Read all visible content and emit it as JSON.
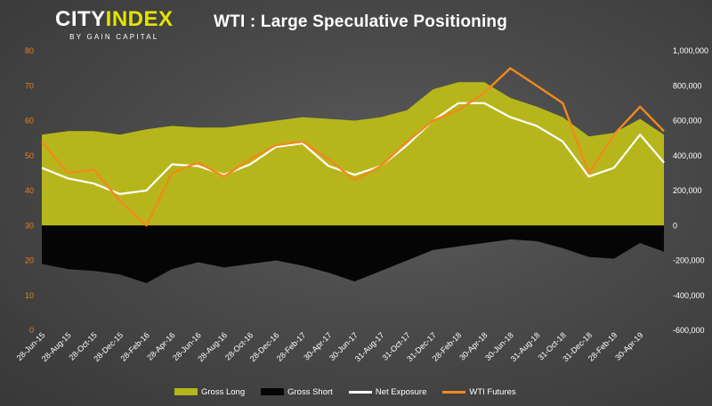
{
  "header": {
    "logo_main": "CITY",
    "logo_accent": "INDEX",
    "logo_sub": "BY GAIN CAPITAL",
    "title": "WTI : Large Speculative Positioning"
  },
  "colors": {
    "gross_long": "#b6b61c",
    "gross_short": "#050505",
    "net_exposure": "#ffffff",
    "wti_futures": "#f08a1e",
    "left_axis_text": "#e8811e",
    "right_axis_text": "#ffffff"
  },
  "chart_data": {
    "type": "area",
    "title": "WTI : Large Speculative Positioning",
    "left_axis": {
      "min": 0,
      "max": 80,
      "ticks": [
        0,
        10,
        20,
        30,
        40,
        50,
        60,
        70,
        80
      ],
      "series": "WTI Futures"
    },
    "right_axis": {
      "min": -600000,
      "max": 1000000,
      "ticks": [
        "-600,000",
        "-400,000",
        "-200,000",
        "0",
        "200,000",
        "400,000",
        "600,000",
        "800,000",
        "1,000,000"
      ]
    },
    "x_labels": [
      "28-Jun-15",
      "28-Aug-15",
      "28-Oct-15",
      "28-Dec-15",
      "28-Feb-16",
      "28-Apr-16",
      "28-Jun-16",
      "28-Aug-16",
      "28-Oct-16",
      "28-Dec-16",
      "28-Feb-17",
      "30-Apr-17",
      "30-Jun-17",
      "31-Aug-17",
      "31-Oct-17",
      "31-Dec-17",
      "28-Feb-18",
      "30-Apr-18",
      "30-Jun-18",
      "31-Aug-18",
      "31-Oct-18",
      "31-Dec-18",
      "28-Feb-19",
      "30-Apr-19"
    ],
    "x_range": [
      "28-Jun-15",
      "25-Jun-19"
    ],
    "sample_dates": [
      "28-Jun-15",
      "28-Aug-15",
      "28-Oct-15",
      "28-Dec-15",
      "28-Feb-16",
      "28-Apr-16",
      "28-Jun-16",
      "28-Aug-16",
      "28-Oct-16",
      "28-Dec-16",
      "28-Feb-17",
      "30-Apr-17",
      "30-Jun-17",
      "31-Aug-17",
      "31-Oct-17",
      "31-Dec-17",
      "28-Feb-18",
      "30-Apr-18",
      "30-Jun-18",
      "31-Aug-18",
      "31-Oct-18",
      "31-Dec-18",
      "28-Feb-19",
      "30-Apr-19",
      "25-Jun-19"
    ],
    "series": [
      {
        "name": "Gross Long",
        "axis": "right",
        "values": [
          520000,
          540000,
          540000,
          520000,
          550000,
          570000,
          560000,
          560000,
          580000,
          600000,
          620000,
          610000,
          600000,
          620000,
          660000,
          780000,
          820000,
          820000,
          730000,
          680000,
          620000,
          510000,
          530000,
          610000,
          520000
        ]
      },
      {
        "name": "Gross Short",
        "axis": "right",
        "values": [
          -220000,
          -250000,
          -260000,
          -280000,
          -330000,
          -250000,
          -210000,
          -240000,
          -220000,
          -200000,
          -230000,
          -270000,
          -320000,
          -260000,
          -200000,
          -140000,
          -120000,
          -100000,
          -80000,
          -90000,
          -130000,
          -180000,
          -190000,
          -100000,
          -150000
        ]
      },
      {
        "name": "Net Exposure",
        "axis": "right",
        "values": [
          330000,
          270000,
          240000,
          180000,
          200000,
          350000,
          340000,
          290000,
          350000,
          450000,
          470000,
          340000,
          290000,
          340000,
          460000,
          600000,
          700000,
          700000,
          620000,
          570000,
          480000,
          280000,
          330000,
          520000,
          360000
        ]
      },
      {
        "name": "WTI Futures",
        "axis": "left",
        "values": [
          54,
          45,
          46,
          37,
          30,
          45,
          48,
          44,
          49,
          53,
          54,
          49,
          43,
          47,
          54,
          60,
          63,
          68,
          75,
          70,
          65,
          45,
          56,
          64,
          57
        ]
      }
    ],
    "legend": {
      "position": "bottom",
      "entries": [
        "Gross Long",
        "Gross Short",
        "Net Exposure",
        "WTI Futures"
      ]
    }
  }
}
